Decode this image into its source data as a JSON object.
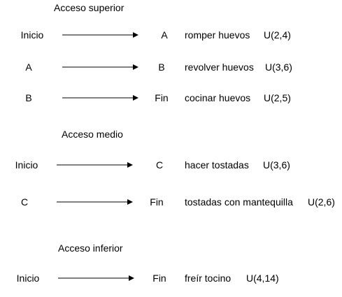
{
  "sections": [
    {
      "heading": "Acceso superior",
      "rows": [
        {
          "from": "Inicio",
          "to": "A",
          "task": "romper huevos",
          "duration": "U(2,4)"
        },
        {
          "from": "A",
          "to": "B",
          "task": "revolver huevos",
          "duration": "U(3,6)"
        },
        {
          "from": "B",
          "to": "Fin",
          "task": "cocinar huevos",
          "duration": "U(2,5)"
        }
      ]
    },
    {
      "heading": "Acceso medio",
      "rows": [
        {
          "from": "Inicio",
          "to": "C",
          "task": "hacer tostadas",
          "duration": "U(3,6)"
        },
        {
          "from": "C",
          "to": "Fin",
          "task": "tostadas con mantequilla",
          "duration": "U(2,6)"
        }
      ]
    },
    {
      "heading": "Acceso inferior",
      "rows": [
        {
          "from": "Inicio",
          "to": "Fin",
          "task": "freír tocino",
          "duration": "U(4,14)"
        }
      ]
    }
  ],
  "colors": {
    "line": "#000000",
    "text": "#000000",
    "background": "#ffffff"
  }
}
